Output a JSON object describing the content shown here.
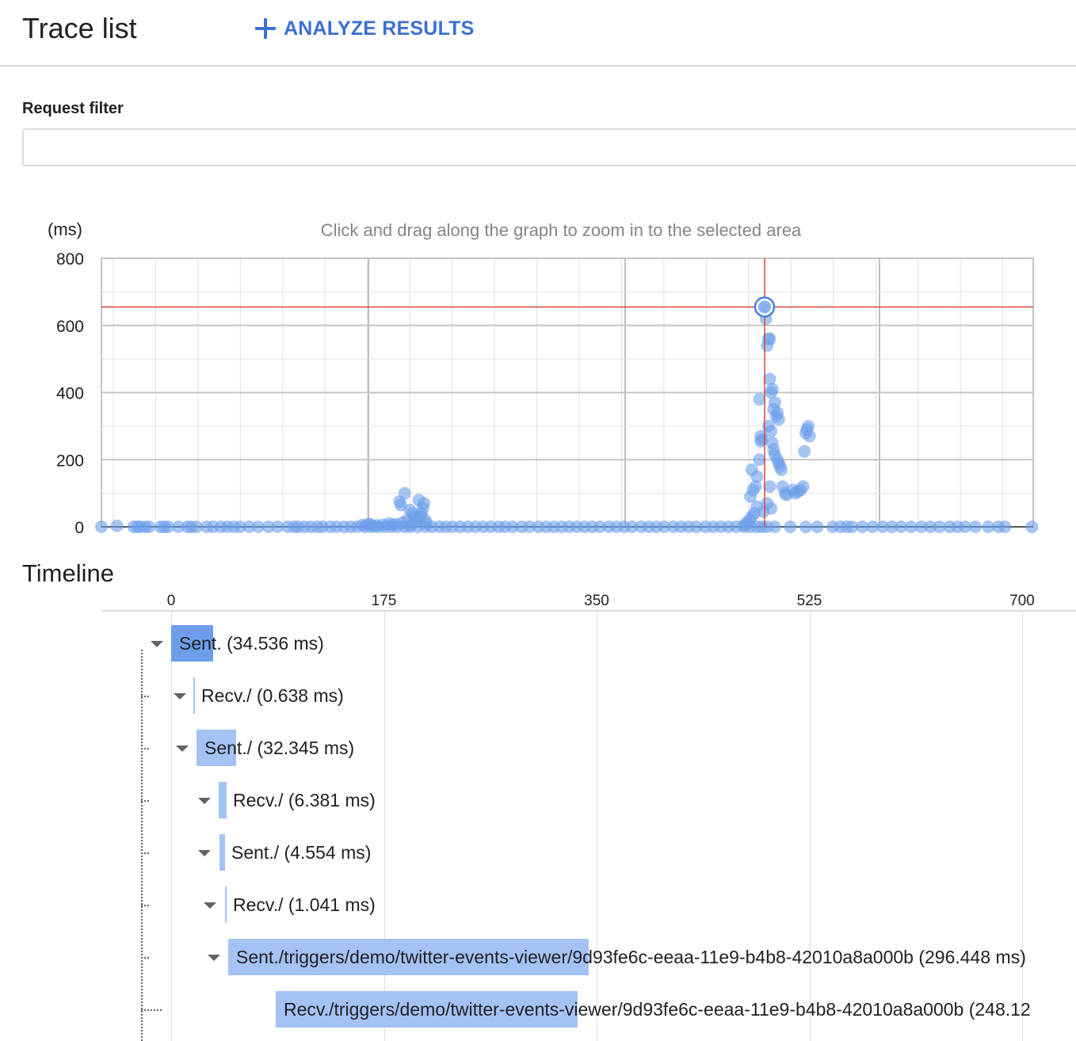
{
  "header": {
    "title": "Trace list",
    "analyze_label": "ANALYZE RESULTS"
  },
  "filter": {
    "label": "Request filter",
    "value": "",
    "placeholder": ""
  },
  "chart_data": {
    "type": "scatter",
    "title": "Click and drag along the graph to zoom in to the selected area",
    "ylabel": "(ms)",
    "xlabel": "",
    "xlim": [
      0,
      725
    ],
    "ylim": [
      0,
      800
    ],
    "y_ticks": [
      0,
      200,
      400,
      600,
      800
    ],
    "grid": true,
    "selected_point": {
      "x": 516,
      "y": 655
    },
    "colors": {
      "point": "#6d9eeb",
      "crosshair": "#db4437",
      "grid": "#e0e0e0"
    },
    "points": [
      [
        0,
        0
      ],
      [
        12,
        3
      ],
      [
        25,
        0
      ],
      [
        28,
        0
      ],
      [
        30,
        0
      ],
      [
        34,
        0
      ],
      [
        37,
        0
      ],
      [
        46,
        0
      ],
      [
        49,
        0
      ],
      [
        52,
        0
      ],
      [
        60,
        0
      ],
      [
        67,
        0
      ],
      [
        70,
        0
      ],
      [
        74,
        0
      ],
      [
        82,
        0
      ],
      [
        87,
        0
      ],
      [
        93,
        0
      ],
      [
        98,
        0
      ],
      [
        103,
        0
      ],
      [
        108,
        0
      ],
      [
        115,
        0
      ],
      [
        122,
        0
      ],
      [
        130,
        0
      ],
      [
        137,
        0
      ],
      [
        145,
        0
      ],
      [
        150,
        0
      ],
      [
        153,
        0
      ],
      [
        158,
        0
      ],
      [
        163,
        0
      ],
      [
        168,
        0
      ],
      [
        172,
        0
      ],
      [
        178,
        0
      ],
      [
        183,
        0
      ],
      [
        189,
        0
      ],
      [
        194,
        0
      ],
      [
        199,
        0
      ],
      [
        205,
        0
      ],
      [
        210,
        0
      ],
      [
        215,
        0
      ],
      [
        220,
        0
      ],
      [
        225,
        0
      ],
      [
        230,
        0
      ],
      [
        236,
        0
      ],
      [
        240,
        0
      ],
      [
        246,
        0
      ],
      [
        252,
        0
      ],
      [
        257,
        0
      ],
      [
        263,
        0
      ],
      [
        268,
        0
      ],
      [
        273,
        0
      ],
      [
        279,
        0
      ],
      [
        285,
        0
      ],
      [
        291,
        0
      ],
      [
        297,
        0
      ],
      [
        303,
        0
      ],
      [
        309,
        0
      ],
      [
        314,
        0
      ],
      [
        320,
        0
      ],
      [
        327,
        0
      ],
      [
        333,
        0
      ],
      [
        340,
        0
      ],
      [
        346,
        0
      ],
      [
        352,
        0
      ],
      [
        358,
        0
      ],
      [
        364,
        0
      ],
      [
        370,
        0
      ],
      [
        376,
        0
      ],
      [
        382,
        0
      ],
      [
        388,
        0
      ],
      [
        395,
        0
      ],
      [
        401,
        0
      ],
      [
        407,
        0
      ],
      [
        413,
        0
      ],
      [
        420,
        0
      ],
      [
        426,
        0
      ],
      [
        432,
        0
      ],
      [
        438,
        0
      ],
      [
        445,
        0
      ],
      [
        451,
        0
      ],
      [
        457,
        0
      ],
      [
        463,
        0
      ],
      [
        470,
        0
      ],
      [
        476,
        0
      ],
      [
        482,
        0
      ],
      [
        488,
        0
      ],
      [
        494,
        0
      ],
      [
        500,
        0
      ],
      [
        505,
        0
      ],
      [
        510,
        0
      ],
      [
        514,
        0
      ],
      [
        518,
        0
      ],
      [
        524,
        0
      ],
      [
        536,
        0
      ],
      [
        548,
        0
      ],
      [
        557,
        0
      ],
      [
        569,
        0
      ],
      [
        575,
        0
      ],
      [
        580,
        0
      ],
      [
        584,
        0
      ],
      [
        592,
        0
      ],
      [
        600,
        0
      ],
      [
        608,
        0
      ],
      [
        615,
        0
      ],
      [
        622,
        0
      ],
      [
        630,
        0
      ],
      [
        638,
        0
      ],
      [
        645,
        0
      ],
      [
        652,
        0
      ],
      [
        660,
        0
      ],
      [
        666,
        0
      ],
      [
        672,
        0
      ],
      [
        680,
        0
      ],
      [
        690,
        0
      ],
      [
        698,
        0
      ],
      [
        703,
        0
      ],
      [
        724,
        0
      ],
      [
        203,
        5
      ],
      [
        209,
        8
      ],
      [
        214,
        4
      ],
      [
        219,
        6
      ],
      [
        224,
        10
      ],
      [
        229,
        8
      ],
      [
        234,
        12
      ],
      [
        238,
        20
      ],
      [
        241,
        6
      ],
      [
        244,
        14
      ],
      [
        246,
        22
      ],
      [
        248,
        30
      ],
      [
        249,
        40
      ],
      [
        250,
        55
      ],
      [
        251,
        70
      ],
      [
        240,
        50
      ],
      [
        232,
        75
      ],
      [
        233,
        65
      ],
      [
        236,
        100
      ],
      [
        242,
        40
      ],
      [
        243,
        30
      ],
      [
        247,
        80
      ],
      [
        252,
        20
      ],
      [
        253,
        10
      ],
      [
        207,
        7
      ],
      [
        211,
        3
      ],
      [
        226,
        5
      ],
      [
        500,
        5
      ],
      [
        502,
        10
      ],
      [
        504,
        20
      ],
      [
        506,
        30
      ],
      [
        508,
        40
      ],
      [
        510,
        60
      ],
      [
        505,
        90
      ],
      [
        507,
        110
      ],
      [
        509,
        120
      ],
      [
        506,
        170
      ],
      [
        510,
        150
      ],
      [
        512,
        200
      ],
      [
        514,
        260
      ],
      [
        513,
        270
      ],
      [
        512,
        380
      ],
      [
        513,
        255
      ],
      [
        515,
        660
      ],
      [
        516,
        655
      ],
      [
        517,
        620
      ],
      [
        518,
        540
      ],
      [
        519,
        560
      ],
      [
        520,
        560
      ],
      [
        520,
        440
      ],
      [
        521,
        400
      ],
      [
        522,
        410
      ],
      [
        523,
        350
      ],
      [
        524,
        370
      ],
      [
        525,
        330
      ],
      [
        526,
        340
      ],
      [
        527,
        320
      ],
      [
        519,
        300
      ],
      [
        521,
        285
      ],
      [
        522,
        250
      ],
      [
        523,
        230
      ],
      [
        524,
        215
      ],
      [
        526,
        200
      ],
      [
        527,
        190
      ],
      [
        528,
        180
      ],
      [
        529,
        170
      ],
      [
        520,
        120
      ],
      [
        530,
        120
      ],
      [
        532,
        100
      ],
      [
        533,
        95
      ],
      [
        538,
        110
      ],
      [
        540,
        100
      ],
      [
        542,
        105
      ],
      [
        544,
        110
      ],
      [
        546,
        120
      ],
      [
        548,
        280
      ],
      [
        549,
        290
      ],
      [
        550,
        300
      ],
      [
        551,
        270
      ],
      [
        547,
        225
      ],
      [
        518,
        70
      ],
      [
        521,
        55
      ],
      [
        515,
        45
      ]
    ]
  },
  "timeline": {
    "title": "Timeline",
    "ticks": [
      "0",
      "175",
      "350",
      "525",
      "700"
    ],
    "rows": [
      {
        "name": "Sent.",
        "duration": "(34.536 ms)",
        "start": 0,
        "length": 34.536,
        "level": 0,
        "primary": true
      },
      {
        "name": "Recv./",
        "duration": "(0.638 ms)",
        "start": 18,
        "length": 0.638,
        "level": 1
      },
      {
        "name": "Sent./",
        "duration": "(32.345 ms)",
        "start": 21,
        "length": 32.345,
        "level": 1
      },
      {
        "name": "Recv./",
        "duration": "(6.381 ms)",
        "start": 39,
        "length": 6.381,
        "level": 2
      },
      {
        "name": "Sent./",
        "duration": "(4.554 ms)",
        "start": 40,
        "length": 4.554,
        "level": 2
      },
      {
        "name": "Recv./",
        "duration": "(1.041 ms)",
        "start": 44,
        "length": 1.041,
        "level": 3
      },
      {
        "name": "Sent./triggers/demo/twitter-events-viewer/9d93fe6c-eeaa-11e9-b4b8-42010a8a000b",
        "duration": "(296.448 ms)",
        "start": 47,
        "length": 296.448,
        "level": 4
      },
      {
        "name": "Recv./triggers/demo/twitter-events-viewer/9d93fe6c-eeaa-11e9-b4b8-42010a8a000b",
        "duration": "(248.12",
        "start": 86,
        "length": 248.12,
        "level": 5
      }
    ],
    "colors": {
      "primary_bar": "#6d9eeb",
      "bar": "#a4c2f4"
    }
  }
}
